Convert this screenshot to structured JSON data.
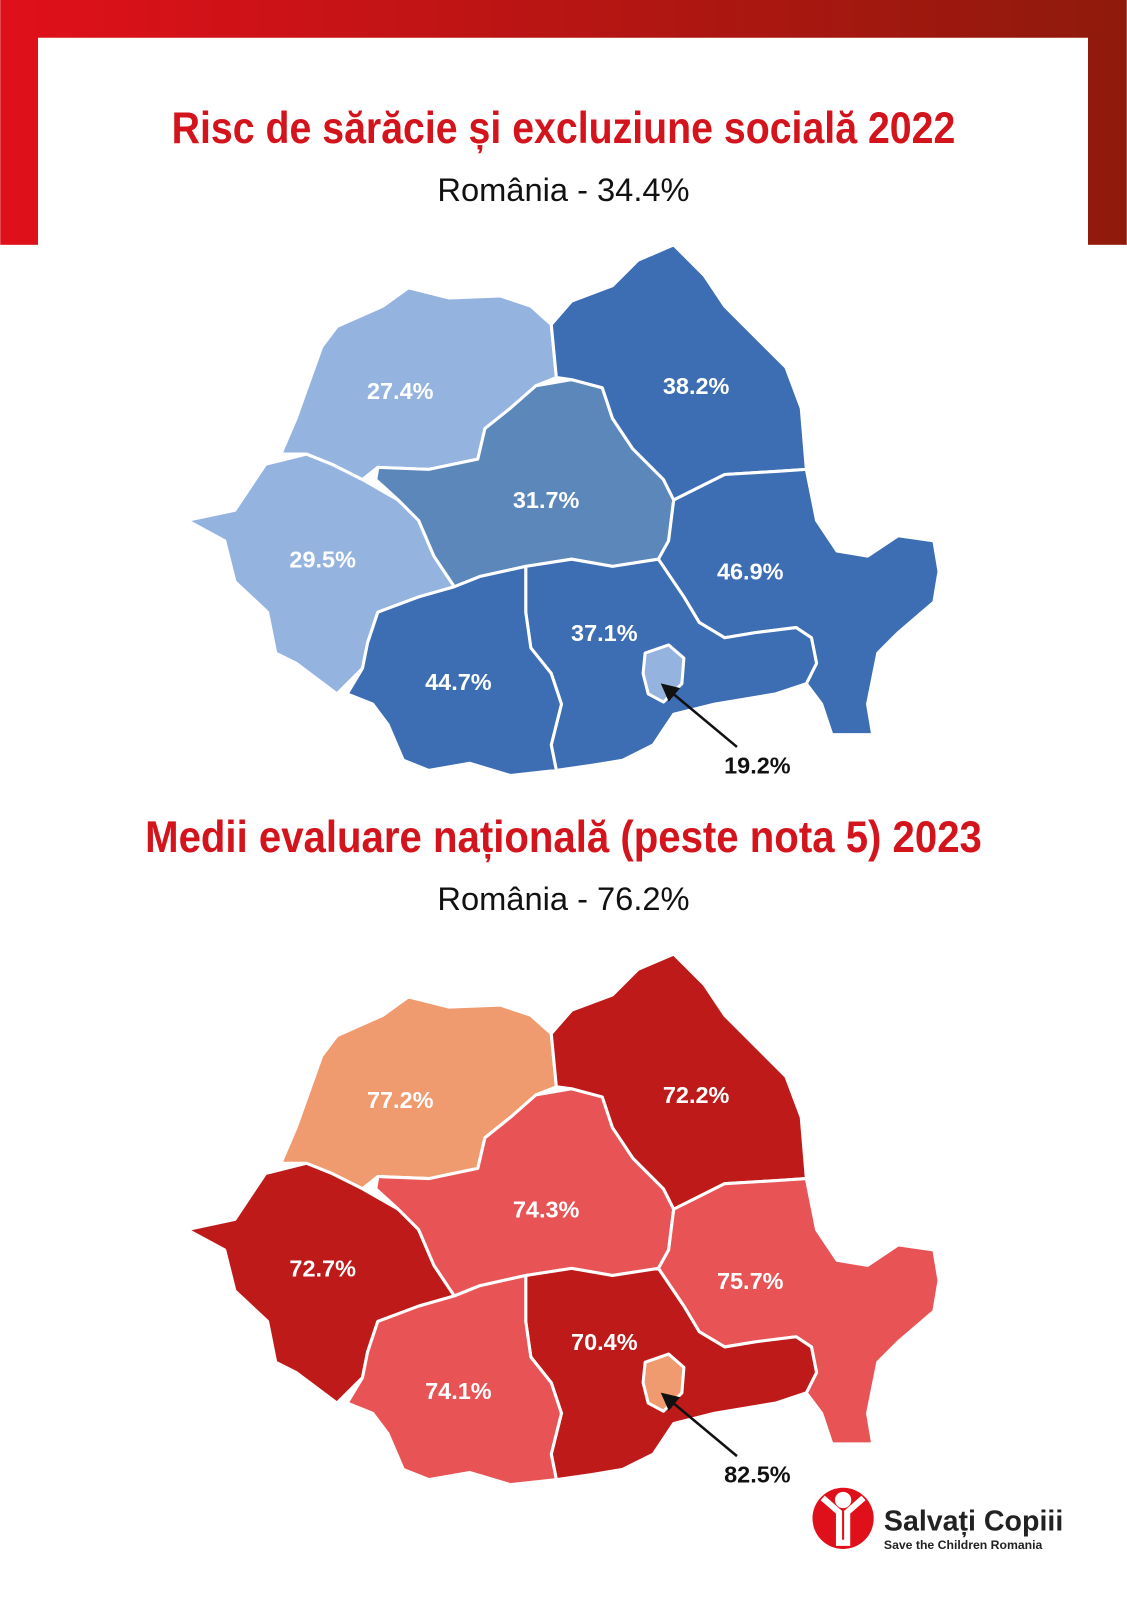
{
  "maps": [
    {
      "title": "Risc de sărăcie și excluziune socială 2022",
      "subtitle": "România - 34.4%",
      "region_labels": [
        "27.4%",
        "29.5%",
        "31.7%",
        "38.2%",
        "46.9%",
        "37.1%",
        "44.7%",
        "19.2%"
      ]
    },
    {
      "title": "Medii evaluare națională (peste nota 5) 2023",
      "subtitle": "România - 76.2%",
      "region_labels": [
        "77.2%",
        "72.7%",
        "74.3%",
        "72.2%",
        "75.7%",
        "70.4%",
        "74.1%",
        "82.5%"
      ]
    }
  ],
  "logo": {
    "name": "Salvați Copiii",
    "tagline": "Save the Children Romania"
  }
}
